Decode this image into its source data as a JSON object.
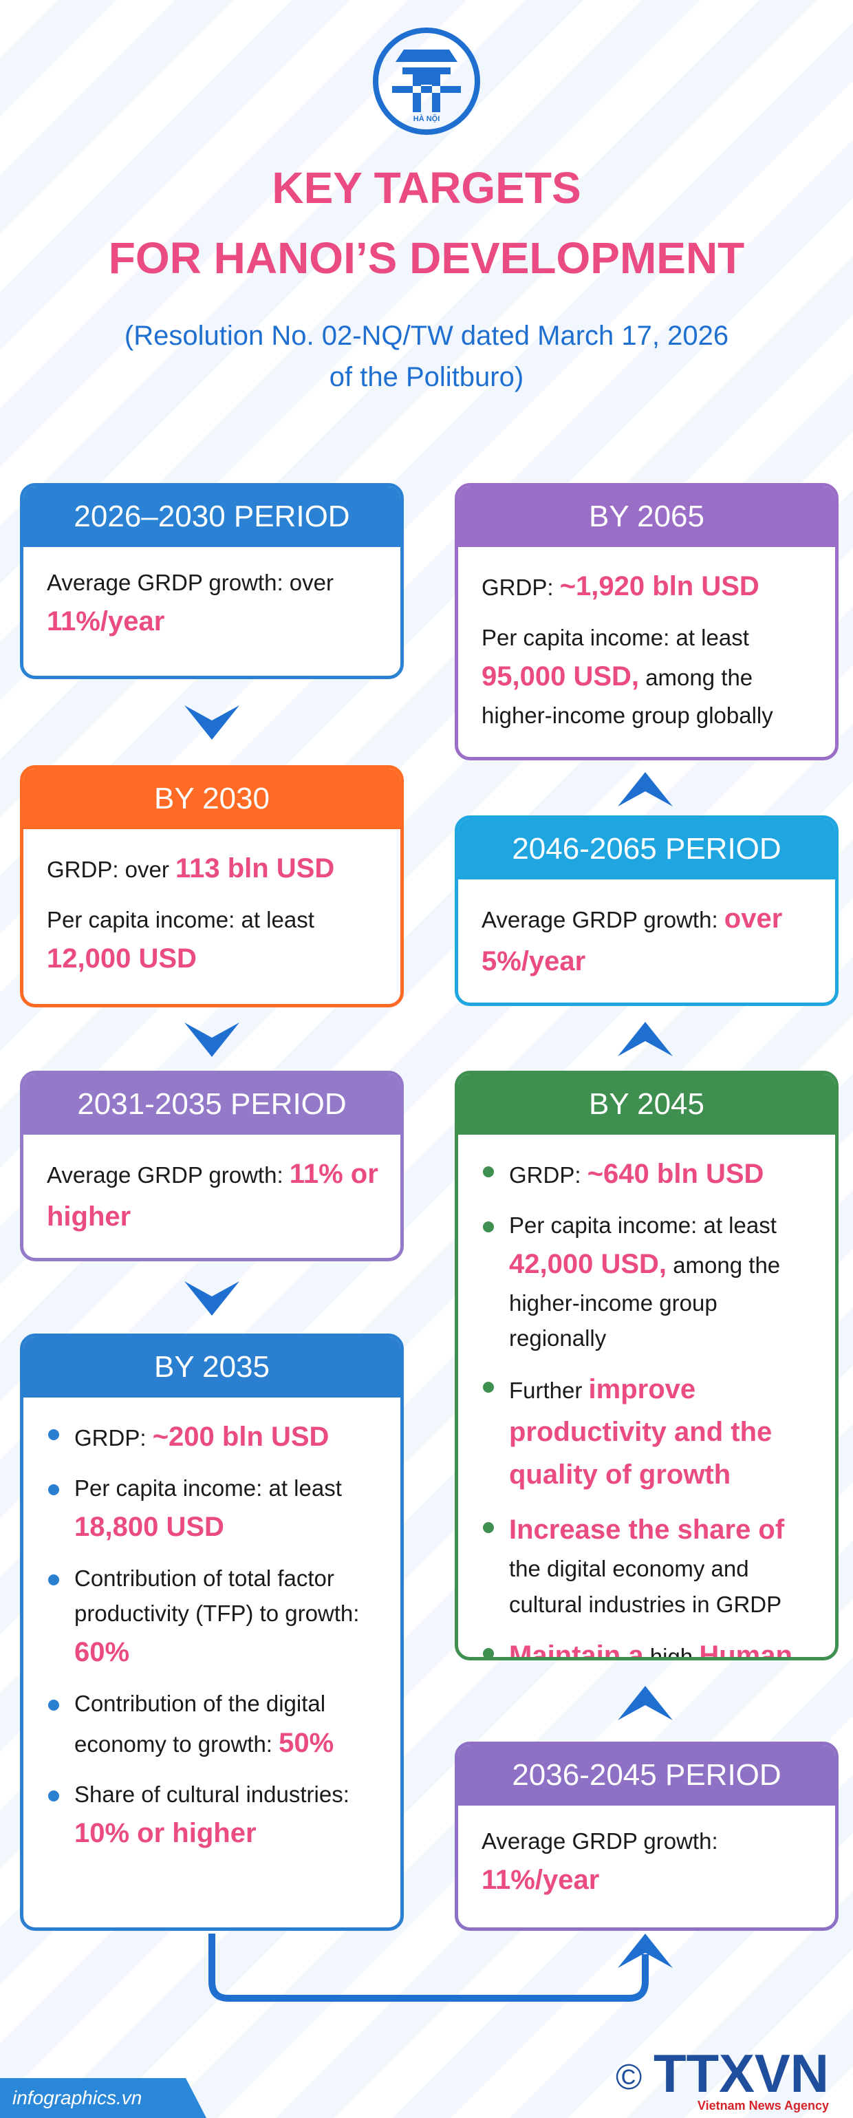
{
  "logo_text": "HÀ NỘI",
  "title": [
    "KEY TARGETS",
    "FOR HANOI’S DEVELOPMENT"
  ],
  "subtitle": [
    "(Resolution No. 02-NQ/TW dated March 17, 2026",
    "of the Politburo)"
  ],
  "cards": [
    {
      "header": "2026–2030 PERIOD",
      "color": "#2b82d4",
      "bulleted": false,
      "items": [
        [
          {
            "text": "Average GRDP growth: over "
          },
          {
            "highlight": "11%/year"
          }
        ]
      ]
    },
    {
      "header": "BY 2030",
      "color": "#ff6a25",
      "bulleted": false,
      "items": [
        [
          {
            "text": "GRDP: over "
          },
          {
            "highlight": "113 bln USD"
          }
        ],
        [
          {
            "text": "Per capita income: at least "
          },
          {
            "highlight": "12,000 USD"
          }
        ]
      ]
    },
    {
      "header": "2031-2035 PERIOD",
      "color": "#9479c9",
      "bulleted": false,
      "items": [
        [
          {
            "text": "Average GRDP growth: "
          },
          {
            "highlight": "11% or higher"
          }
        ]
      ]
    },
    {
      "header": "BY 2035",
      "color": "#2b7fd0",
      "bulleted": true,
      "items": [
        [
          {
            "text": "GRDP: "
          },
          {
            "highlight": "~200 bln USD"
          }
        ],
        [
          {
            "text": "Per capita income: at least "
          },
          {
            "highlight": "18,800 USD"
          }
        ],
        [
          {
            "text": "Contribution of total factor productivity (TFP) to growth: "
          },
          {
            "highlight": "60%"
          }
        ],
        [
          {
            "text": "Contribution of the digital economy to growth: "
          },
          {
            "highlight": "50%"
          }
        ],
        [
          {
            "text": "Share of cultural industries: "
          },
          {
            "highlight": "10% or higher"
          }
        ]
      ]
    },
    {
      "header": "2036-2045 PERIOD",
      "color": "#8e70c4",
      "bulleted": false,
      "items": [
        [
          {
            "text": "Average GRDP growth: "
          },
          {
            "highlight": "11%/year"
          }
        ]
      ]
    },
    {
      "header": "BY 2045",
      "color": "#3f8f50",
      "bulleted": true,
      "items": [
        [
          {
            "text": "GRDP: "
          },
          {
            "highlight": "~640 bln USD"
          }
        ],
        [
          {
            "text": "Per capita income: at least "
          },
          {
            "highlight": "42,000 USD,"
          },
          {
            "text": " among the higher-income group regionally"
          }
        ],
        [
          {
            "text": "Further "
          },
          {
            "highlight": "improve productivity and the quality of growth"
          }
        ],
        [
          {
            "highlight": "Increase the share of"
          },
          {
            "text": " the digital economy and cultural industries in GRDP"
          }
        ],
        [
          {
            "highlight": "Maintain a"
          },
          {
            "text": " high "
          },
          {
            "highlight": "Human Development Index"
          }
        ]
      ]
    },
    {
      "header": "2046-2065 PERIOD",
      "color": "#1fa6e0",
      "bulleted": false,
      "items": [
        [
          {
            "text": "Average GRDP growth: "
          },
          {
            "highlight": "over 5%/year"
          }
        ]
      ]
    },
    {
      "header": "BY 2065",
      "color": "#9a6dc7",
      "bulleted": false,
      "items": [
        [
          {
            "text": "GRDP: "
          },
          {
            "highlight": "~1,920 bln USD"
          }
        ],
        [
          {
            "text": "Per capita income: at least "
          },
          {
            "highlight": "95,000 USD,"
          },
          {
            "text": " among the higher-income group globally"
          }
        ]
      ]
    }
  ],
  "footer": {
    "source": "infographics.vn",
    "copyright": "©",
    "agency": "TTXVN",
    "agency_sub": "Vietnam News Agency"
  }
}
